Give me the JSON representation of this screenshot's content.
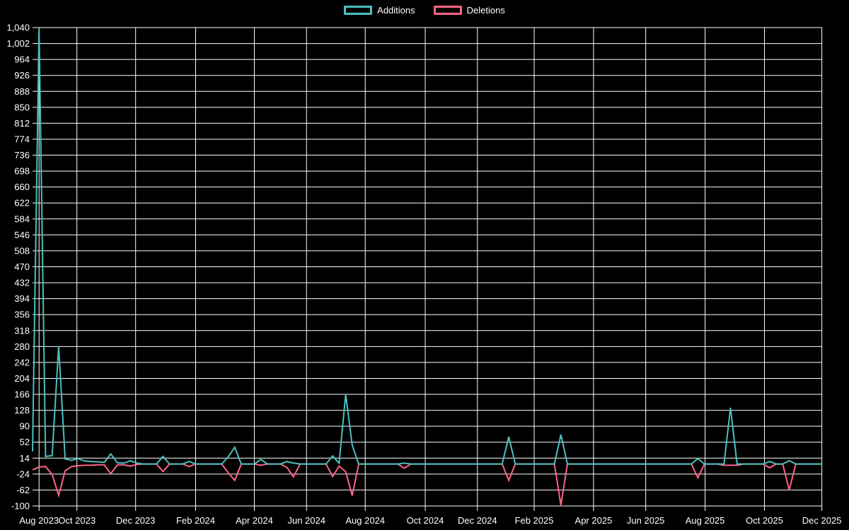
{
  "chart_data": {
    "type": "line",
    "title": "",
    "background": "#000000",
    "grid": true,
    "grid_color": "#ffffff",
    "text_color": "#ffffff",
    "legend_position": "top",
    "x_axis": {
      "tick_labels": [
        "Aug 2023",
        "Oct 2023",
        "Dec 2023",
        "Feb 2024",
        "Apr 2024",
        "Jun 2024",
        "Aug 2024",
        "Oct 2024",
        "Dec 2024",
        "Feb 2025",
        "Apr 2025",
        "Jun 2025",
        "Aug 2025",
        "Oct 2025",
        "Dec 2025"
      ],
      "tick_weeks": [
        1.0,
        6.8,
        15.8,
        25.0,
        34.0,
        42.0,
        51.0,
        60.2,
        68.2,
        76.9,
        86.0,
        94.0,
        103.1,
        112.2,
        121.0
      ]
    },
    "y_axis": {
      "min": -100,
      "max": 1040,
      "step": 38,
      "tick_labels": [
        "1,040",
        "1,002",
        "964",
        "926",
        "888",
        "850",
        "812",
        "774",
        "736",
        "698",
        "660",
        "622",
        "584",
        "546",
        "508",
        "470",
        "432",
        "394",
        "356",
        "318",
        "280",
        "242",
        "204",
        "166",
        "128",
        "90",
        "52",
        "14",
        "-24",
        "-62",
        "-100"
      ]
    },
    "weeks_total": 122,
    "series": [
      {
        "name": "Additions",
        "color": "#4bc0c0",
        "values": [
          30,
          1040,
          18,
          20,
          280,
          12,
          9,
          13,
          7,
          6,
          5,
          4,
          24,
          3,
          2,
          8,
          2,
          0,
          0,
          0,
          18,
          0,
          0,
          0,
          6,
          0,
          0,
          0,
          0,
          0,
          17,
          40,
          0,
          0,
          0,
          11,
          0,
          0,
          0,
          6,
          2,
          0,
          0,
          0,
          0,
          0,
          19,
          2,
          166,
          45,
          0,
          0,
          0,
          0,
          0,
          0,
          0,
          2,
          0,
          0,
          0,
          0,
          0,
          0,
          0,
          0,
          0,
          0,
          0,
          0,
          0,
          0,
          0,
          65,
          0,
          0,
          0,
          0,
          0,
          0,
          0,
          70,
          0,
          0,
          0,
          0,
          0,
          0,
          0,
          0,
          0,
          0,
          0,
          0,
          0,
          0,
          0,
          0,
          0,
          0,
          0,
          0,
          13,
          0,
          0,
          0,
          0,
          134,
          0,
          0,
          0,
          0,
          0,
          6,
          0,
          0,
          8,
          0,
          0,
          0,
          0,
          0
        ]
      },
      {
        "name": "Deletions",
        "color": "#ff6384",
        "values": [
          -14,
          -7,
          -6,
          -25,
          -75,
          -16,
          -6,
          -4,
          -3,
          -3,
          -2,
          -2,
          -23,
          -2,
          -2,
          -5,
          -1,
          0,
          0,
          0,
          -18,
          0,
          0,
          0,
          -6,
          0,
          0,
          0,
          0,
          0,
          -21,
          -39,
          0,
          0,
          0,
          -3,
          0,
          0,
          0,
          -8,
          -31,
          0,
          0,
          0,
          0,
          0,
          -30,
          -5,
          -18,
          -75,
          0,
          0,
          0,
          0,
          0,
          0,
          0,
          -10,
          0,
          0,
          0,
          0,
          0,
          0,
          0,
          0,
          0,
          0,
          0,
          0,
          0,
          0,
          0,
          -39,
          0,
          0,
          0,
          0,
          0,
          0,
          0,
          -98,
          0,
          0,
          0,
          0,
          0,
          0,
          0,
          0,
          0,
          0,
          0,
          0,
          0,
          0,
          0,
          0,
          0,
          0,
          0,
          0,
          -33,
          0,
          0,
          0,
          -3,
          -3,
          -3,
          0,
          0,
          0,
          0,
          -9,
          0,
          0,
          -62,
          0,
          0,
          0,
          0,
          0
        ]
      }
    ]
  }
}
